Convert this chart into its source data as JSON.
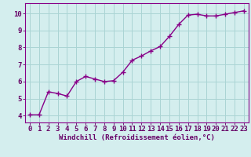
{
  "x": [
    0,
    1,
    2,
    3,
    4,
    5,
    6,
    7,
    8,
    9,
    10,
    11,
    12,
    13,
    14,
    15,
    16,
    17,
    18,
    19,
    20,
    21,
    22,
    23
  ],
  "y": [
    4.05,
    4.05,
    5.4,
    5.3,
    5.15,
    6.0,
    6.3,
    6.15,
    6.0,
    6.05,
    6.55,
    7.25,
    7.5,
    7.8,
    8.05,
    8.65,
    9.35,
    9.9,
    9.95,
    9.85,
    9.85,
    9.95,
    10.05,
    10.15
  ],
  "line_color": "#880088",
  "marker": "+",
  "marker_size": 4,
  "marker_edge_width": 1.0,
  "bg_color": "#d4eeee",
  "grid_color": "#aad4d4",
  "xlabel": "Windchill (Refroidissement éolien,°C)",
  "ylabel_ticks": [
    4,
    5,
    6,
    7,
    8,
    9,
    10
  ],
  "xlim": [
    -0.5,
    23.5
  ],
  "ylim": [
    3.6,
    10.6
  ],
  "xticks": [
    0,
    1,
    2,
    3,
    4,
    5,
    6,
    7,
    8,
    9,
    10,
    11,
    12,
    13,
    14,
    15,
    16,
    17,
    18,
    19,
    20,
    21,
    22,
    23
  ],
  "xlabel_fontsize": 6.5,
  "xlabel_fontweight": "bold",
  "tick_fontsize": 6.5,
  "tick_color": "#660066",
  "line_width": 1.0,
  "spine_color": "#880088"
}
